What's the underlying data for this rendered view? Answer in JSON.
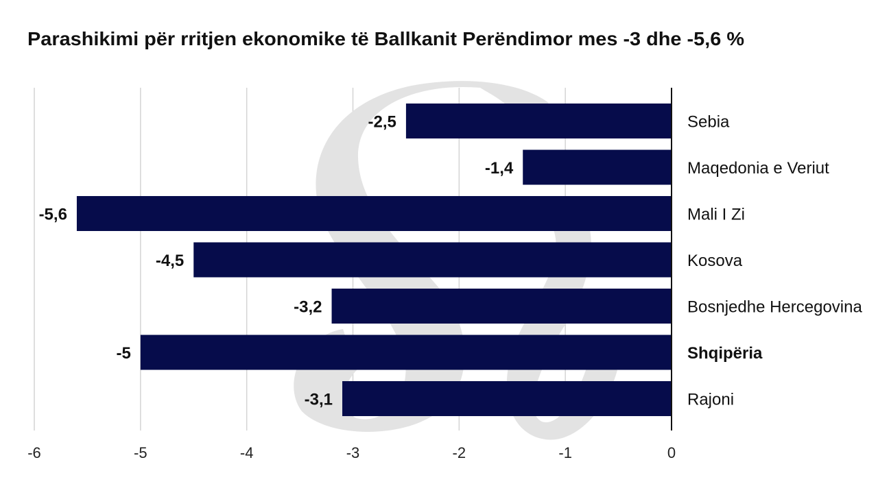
{
  "chart_data": {
    "type": "bar",
    "orientation": "horizontal",
    "title": "Parashikimi për rritjen ekonomike të Ballkanit Perëndimor mes -3 dhe -5,6 %",
    "categories": [
      "Sebia",
      "Maqedonia e Veriut",
      "Mali I Zi",
      "Kosova",
      "Bosnjedhe Hercegovina",
      "Shqipëria",
      "Rajoni"
    ],
    "values": [
      -2.5,
      -1.4,
      -5.6,
      -4.5,
      -3.2,
      -5,
      -3.1
    ],
    "value_labels": [
      "-2,5",
      "-1,4",
      "-5,6",
      "-4,5",
      "-3,2",
      "-5",
      "-3,1"
    ],
    "highlighted_category": "Shqipëria",
    "xlim": [
      -6,
      0
    ],
    "xticks": [
      -6,
      -5,
      -4,
      -3,
      -2,
      -1,
      0
    ],
    "xtick_labels": [
      "-6",
      "-5",
      "-4",
      "-3",
      "-2",
      "-1",
      "0"
    ],
    "xlabel": "",
    "ylabel": "",
    "grid": true,
    "bar_color": "#060c4b"
  }
}
